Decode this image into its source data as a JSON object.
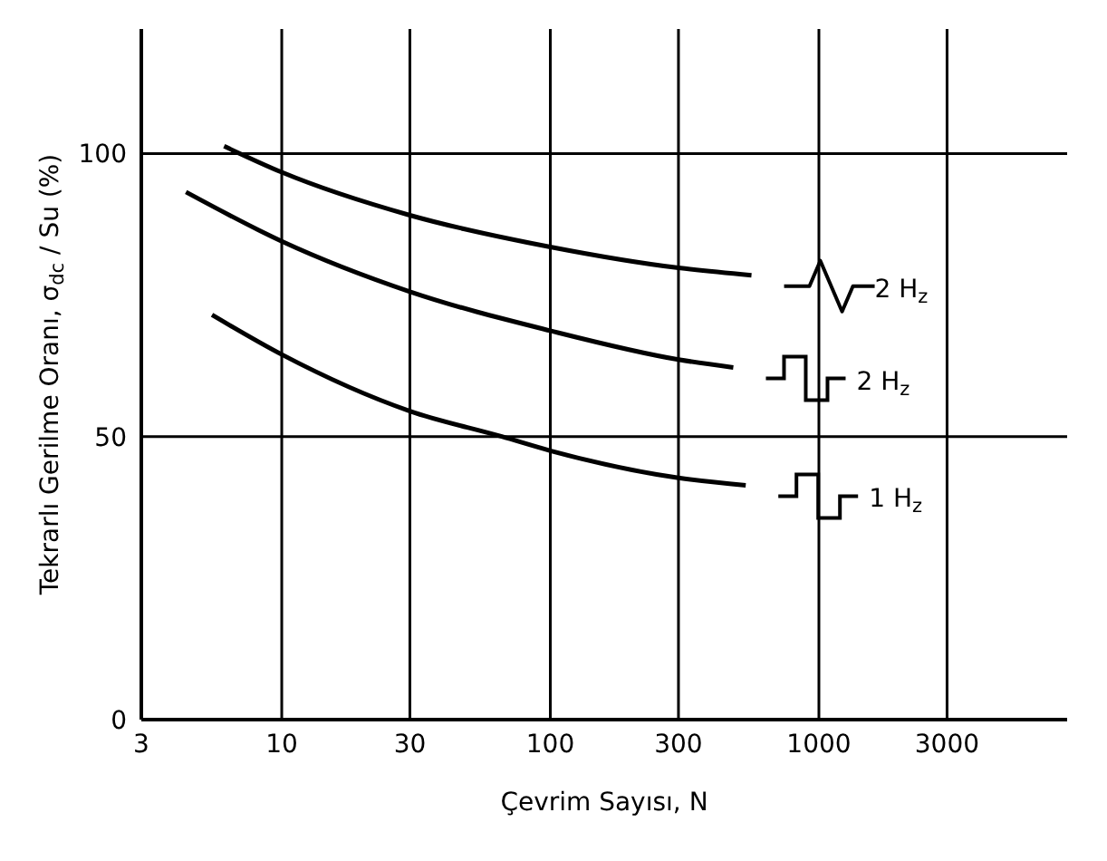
{
  "chart_data": {
    "type": "line",
    "xlabel": "Çevrim Sayısı, N",
    "ylabel": "Tekrarlı Gerilme Oranı, σ$_{dc}$ / Su (%)",
    "log": "x",
    "xlim": [
      3,
      8400
    ],
    "xticks": [
      3,
      10,
      30,
      100,
      300,
      1000,
      3000
    ],
    "ylim": [
      0,
      122
    ],
    "yticks": [
      0,
      50,
      100
    ],
    "grid": true,
    "legend": "right",
    "marker": "none",
    "line_style": "solid",
    "series": [
      {
        "name": "2 H$_{z}$",
        "color": "#000000",
        "x": [
          6.1,
          10,
          30,
          100,
          300,
          561
        ],
        "values": [
          101.3,
          96.7,
          89.1,
          83.5,
          79.8,
          78.5
        ]
      },
      {
        "name": "2 H$_{z}$",
        "color": "#000000",
        "x": [
          4.4,
          10,
          30,
          100,
          300,
          480
        ],
        "values": [
          93.2,
          84.5,
          75.6,
          68.7,
          63.6,
          62.2
        ]
      },
      {
        "name": "1 H$_{z}$",
        "color": "#000000",
        "x": [
          5.5,
          10,
          30,
          66,
          100,
          300,
          534
        ],
        "values": [
          71.5,
          64.5,
          54.5,
          50,
          47.5,
          42.7,
          41.4
        ]
      }
    ]
  }
}
